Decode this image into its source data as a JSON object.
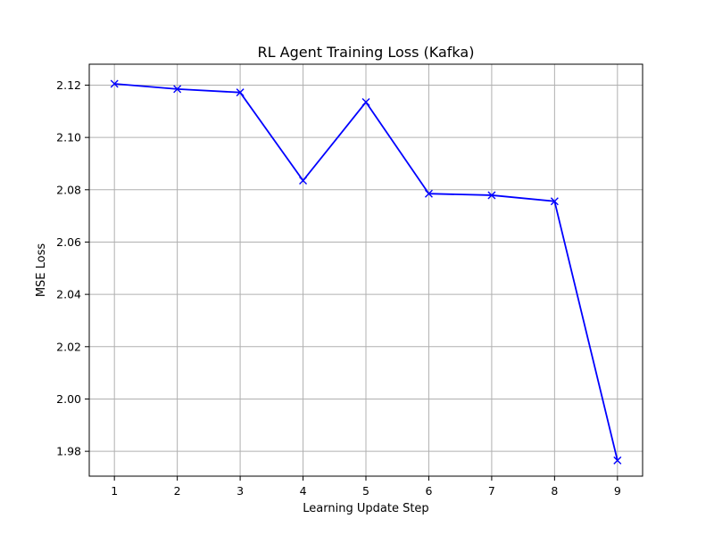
{
  "chart_data": {
    "type": "line",
    "title": "RL Agent Training Loss (Kafka)",
    "xlabel": "Learning Update Step",
    "ylabel": "MSE Loss",
    "x": [
      1,
      2,
      3,
      4,
      5,
      6,
      7,
      8,
      9
    ],
    "series": [
      {
        "values": [
          2.1205,
          2.1185,
          2.1172,
          2.0835,
          2.1135,
          2.0785,
          2.0779,
          2.0756,
          1.9765
        ],
        "color": "#0000ff",
        "marker": "x"
      }
    ],
    "xlim": [
      0.6,
      9.4
    ],
    "ylim": [
      1.9705,
      2.128
    ],
    "xticks": [
      "1",
      "2",
      "3",
      "4",
      "5",
      "6",
      "7",
      "8",
      "9"
    ],
    "yticks": [
      "1.98",
      "2.00",
      "2.02",
      "2.04",
      "2.06",
      "2.08",
      "2.10",
      "2.12"
    ],
    "grid": true
  }
}
